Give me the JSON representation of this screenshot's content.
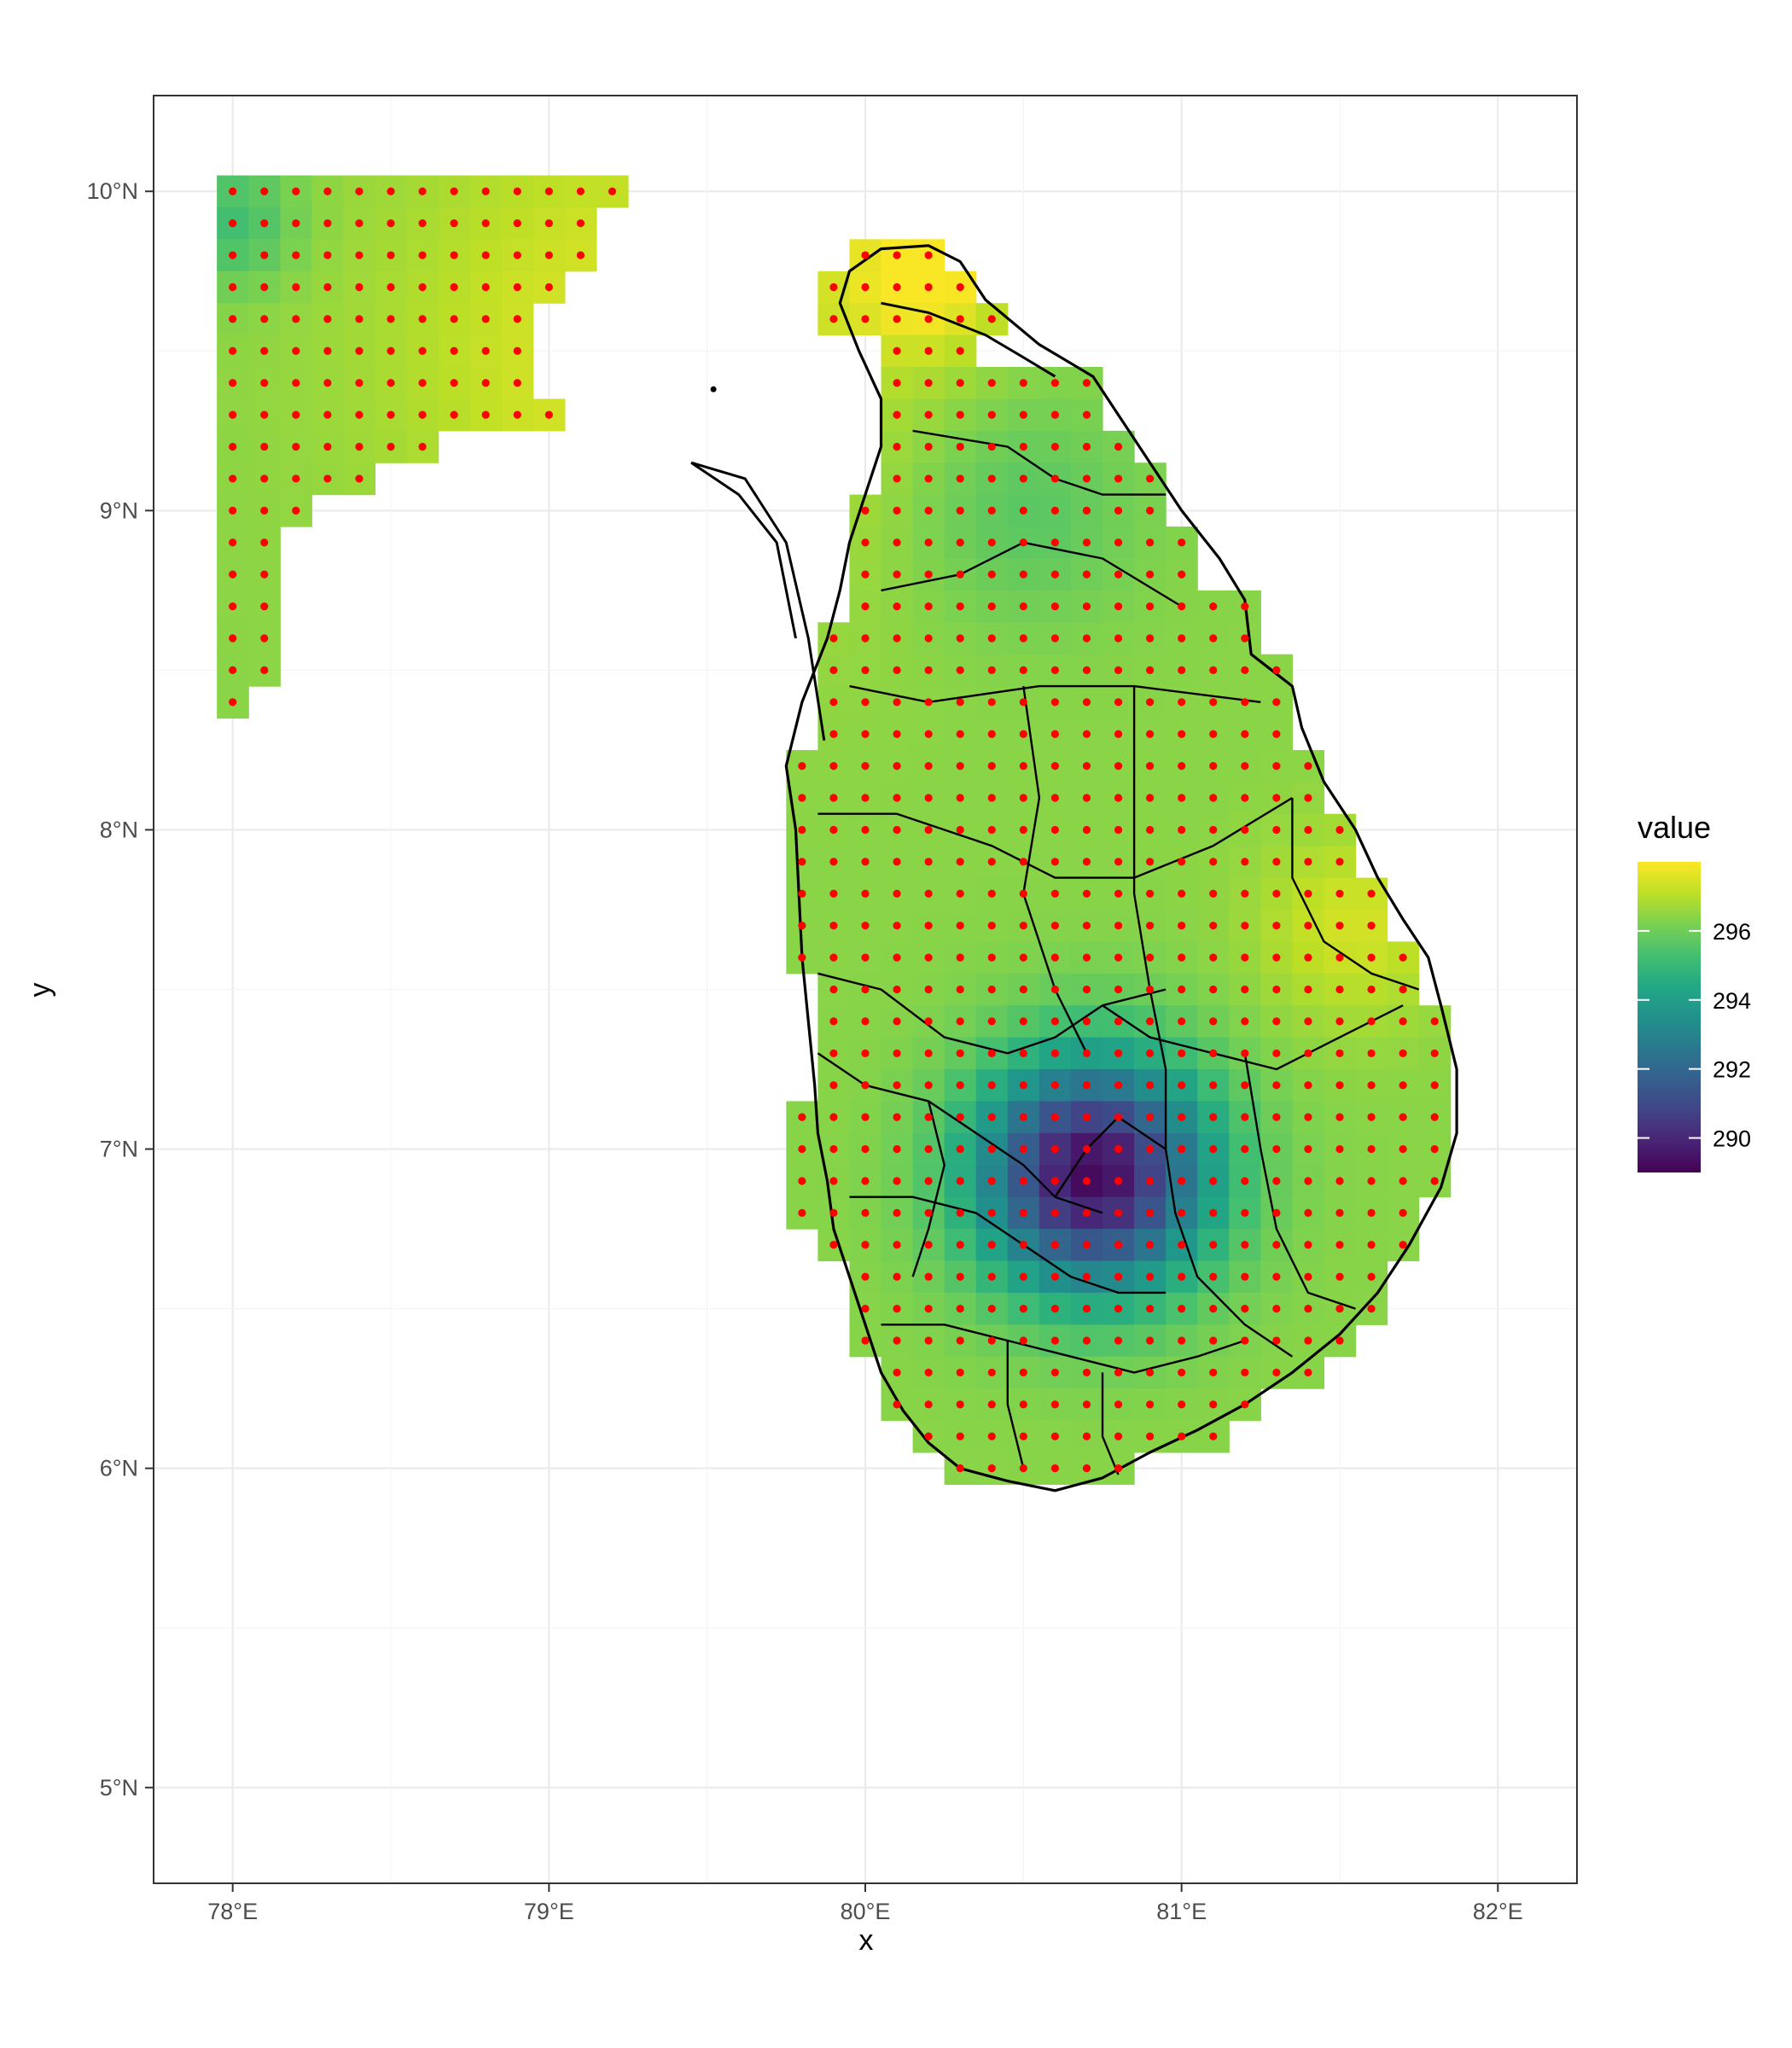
{
  "chart_data": {
    "type": "heatmap",
    "xlabel": "x",
    "ylabel": "y",
    "xlim": [
      77.75,
      82.25
    ],
    "ylim": [
      4.7,
      10.3
    ],
    "x_ticks": [
      {
        "value": 78,
        "label": "78°E"
      },
      {
        "value": 79,
        "label": "79°E"
      },
      {
        "value": 80,
        "label": "80°E"
      },
      {
        "value": 81,
        "label": "81°E"
      },
      {
        "value": 82,
        "label": "82°E"
      }
    ],
    "y_ticks": [
      {
        "value": 5,
        "label": "5°N"
      },
      {
        "value": 6,
        "label": "6°N"
      },
      {
        "value": 7,
        "label": "7°N"
      },
      {
        "value": 8,
        "label": "8°N"
      },
      {
        "value": 9,
        "label": "9°N"
      },
      {
        "value": 10,
        "label": "10°N"
      }
    ],
    "grid": true,
    "cell_size_deg": 0.1,
    "point_color": "#ff0000",
    "outline_color": "#000000",
    "legend": {
      "title": "value",
      "position": "right",
      "range": [
        289,
        298
      ],
      "breaks": [
        290,
        292,
        294,
        296
      ],
      "colormap": "viridis"
    },
    "region_west": {
      "x_min": 78.0,
      "row_extents": [
        {
          "y": 10.0,
          "x_max": 79.2
        },
        {
          "y": 9.9,
          "x_max": 79.1
        },
        {
          "y": 9.8,
          "x_max": 79.1
        },
        {
          "y": 9.7,
          "x_max": 79.0
        },
        {
          "y": 9.6,
          "x_max": 78.9
        },
        {
          "y": 9.5,
          "x_max": 78.9
        },
        {
          "y": 9.4,
          "x_max": 78.9
        },
        {
          "y": 9.3,
          "x_max": 79.0
        },
        {
          "y": 9.2,
          "x_max": 78.6
        },
        {
          "y": 9.1,
          "x_max": 78.4
        },
        {
          "y": 9.0,
          "x_max": 78.2
        },
        {
          "y": 8.9,
          "x_max": 78.1
        },
        {
          "y": 8.8,
          "x_max": 78.1
        },
        {
          "y": 8.7,
          "x_max": 78.1
        },
        {
          "y": 8.6,
          "x_max": 78.1
        },
        {
          "y": 8.5,
          "x_max": 78.1
        },
        {
          "y": 8.4,
          "x_max": 78.0
        }
      ]
    },
    "region_island": {
      "row_extents": [
        {
          "y": 9.8,
          "x_min": 80.0,
          "x_max": 80.2
        },
        {
          "y": 9.7,
          "x_min": 79.9,
          "x_max": 80.3
        },
        {
          "y": 9.6,
          "x_min": 79.9,
          "x_max": 80.4
        },
        {
          "y": 9.5,
          "x_min": 80.1,
          "x_max": 80.3
        },
        {
          "y": 9.4,
          "x_min": 80.1,
          "x_max": 80.7
        },
        {
          "y": 9.3,
          "x_min": 80.1,
          "x_max": 80.7
        },
        {
          "y": 9.2,
          "x_min": 80.1,
          "x_max": 80.8
        },
        {
          "y": 9.1,
          "x_min": 80.1,
          "x_max": 80.9
        },
        {
          "y": 9.0,
          "x_min": 80.0,
          "x_max": 80.9
        },
        {
          "y": 8.9,
          "x_min": 80.0,
          "x_max": 81.0
        },
        {
          "y": 8.8,
          "x_min": 80.0,
          "x_max": 81.0
        },
        {
          "y": 8.7,
          "x_min": 80.0,
          "x_max": 81.2
        },
        {
          "y": 8.6,
          "x_min": 79.9,
          "x_max": 81.2
        },
        {
          "y": 8.5,
          "x_min": 79.9,
          "x_max": 81.3
        },
        {
          "y": 8.4,
          "x_min": 79.9,
          "x_max": 81.3
        },
        {
          "y": 8.3,
          "x_min": 79.9,
          "x_max": 81.3
        },
        {
          "y": 8.2,
          "x_min": 79.8,
          "x_max": 81.4
        },
        {
          "y": 8.1,
          "x_min": 79.8,
          "x_max": 81.4
        },
        {
          "y": 8.0,
          "x_min": 79.8,
          "x_max": 81.5
        },
        {
          "y": 7.9,
          "x_min": 79.8,
          "x_max": 81.5
        },
        {
          "y": 7.8,
          "x_min": 79.8,
          "x_max": 81.6
        },
        {
          "y": 7.7,
          "x_min": 79.8,
          "x_max": 81.6
        },
        {
          "y": 7.6,
          "x_min": 79.8,
          "x_max": 81.7
        },
        {
          "y": 7.5,
          "x_min": 79.9,
          "x_max": 81.7
        },
        {
          "y": 7.4,
          "x_min": 79.9,
          "x_max": 81.8
        },
        {
          "y": 7.3,
          "x_min": 79.9,
          "x_max": 81.8
        },
        {
          "y": 7.2,
          "x_min": 79.9,
          "x_max": 81.8
        },
        {
          "y": 7.1,
          "x_min": 79.8,
          "x_max": 81.8
        },
        {
          "y": 7.0,
          "x_min": 79.8,
          "x_max": 81.8
        },
        {
          "y": 6.9,
          "x_min": 79.8,
          "x_max": 81.8
        },
        {
          "y": 6.8,
          "x_min": 79.8,
          "x_max": 81.7
        },
        {
          "y": 6.7,
          "x_min": 79.9,
          "x_max": 81.7
        },
        {
          "y": 6.6,
          "x_min": 80.0,
          "x_max": 81.6
        },
        {
          "y": 6.5,
          "x_min": 80.0,
          "x_max": 81.6
        },
        {
          "y": 6.4,
          "x_min": 80.0,
          "x_max": 81.5
        },
        {
          "y": 6.3,
          "x_min": 80.1,
          "x_max": 81.4
        },
        {
          "y": 6.2,
          "x_min": 80.1,
          "x_max": 81.2
        },
        {
          "y": 6.1,
          "x_min": 80.2,
          "x_max": 81.1
        },
        {
          "y": 6.0,
          "x_min": 80.3,
          "x_max": 80.8
        }
      ]
    },
    "value_field": {
      "base": 296.4,
      "cool_center": {
        "x": 80.72,
        "y": 6.92,
        "depth": 7.2,
        "radius": 0.36
      },
      "warm_spots": [
        {
          "x": 79.3,
          "y": 9.5,
          "amp": 1.2,
          "radius": 0.8
        },
        {
          "x": 80.2,
          "y": 9.75,
          "amp": 1.6,
          "radius": 0.25
        },
        {
          "x": 81.55,
          "y": 7.7,
          "amp": 1.0,
          "radius": 0.3
        }
      ],
      "cool_spots": [
        {
          "x": 78.0,
          "y": 9.9,
          "amp": 1.2,
          "radius": 0.2
        },
        {
          "x": 80.5,
          "y": 9.0,
          "amp": 0.8,
          "radius": 0.35
        }
      ]
    }
  }
}
